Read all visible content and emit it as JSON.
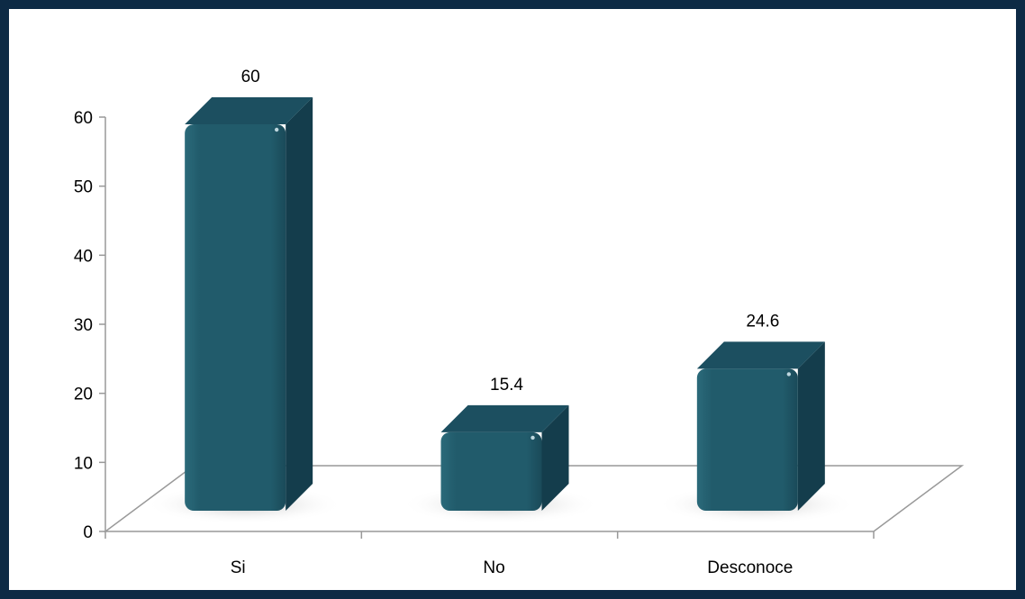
{
  "chart_data": {
    "type": "bar",
    "categories": [
      "Si",
      "No",
      "Desconoce"
    ],
    "values": [
      60,
      15.4,
      24.6
    ],
    "data_labels": [
      "60",
      "15.4",
      "24.6"
    ],
    "ylim": [
      0,
      60
    ],
    "yticks": [
      "0",
      "10",
      "20",
      "30",
      "40",
      "50",
      "60"
    ],
    "title": "",
    "xlabel": "",
    "ylabel": "",
    "grid": false,
    "style": "3d-floor",
    "colors": {
      "bar_front": "#215b6b",
      "bar_side": "#143d4c",
      "bar_top": "#1c4f60",
      "frame": "#0d2a45",
      "axis": "#999999"
    }
  }
}
